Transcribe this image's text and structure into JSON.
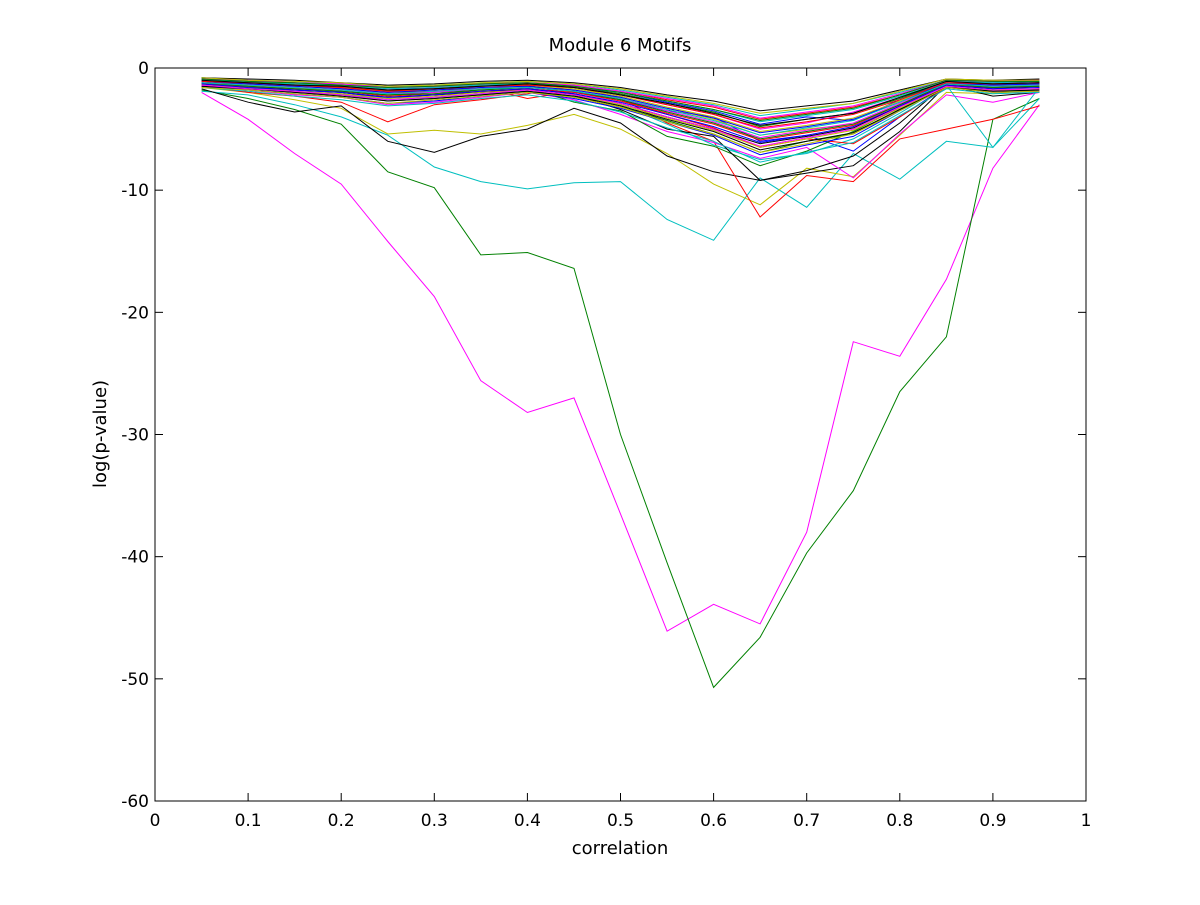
{
  "chart_data": {
    "type": "line",
    "title": "Module 6 Motifs",
    "xlabel": "correlation",
    "ylabel": "log(p-value)",
    "xlim": [
      0,
      1
    ],
    "ylim": [
      -60,
      0
    ],
    "grid": false,
    "legend": "none",
    "xticks": [
      0,
      0.1,
      0.2,
      0.3,
      0.4,
      0.5,
      0.6,
      0.7,
      0.8,
      0.9,
      1
    ],
    "xtick_labels": [
      "0",
      "0.1",
      "0.2",
      "0.3",
      "0.4",
      "0.5",
      "0.6",
      "0.7",
      "0.8",
      "0.9",
      "1"
    ],
    "yticks": [
      0,
      -10,
      -20,
      -30,
      -40,
      -50,
      -60
    ],
    "ytick_labels": [
      "0",
      "-10",
      "-20",
      "-30",
      "-40",
      "-50",
      "-60"
    ],
    "x": [
      0.05,
      0.1,
      0.15,
      0.2,
      0.25,
      0.3,
      0.35,
      0.4,
      0.45,
      0.5,
      0.55,
      0.6,
      0.65,
      0.7,
      0.75,
      0.8,
      0.85,
      0.9,
      0.95
    ],
    "series": [
      {
        "color": "#ff00ff",
        "values": [
          -2.0,
          -4.2,
          -7.0,
          -9.5,
          -14.2,
          -18.7,
          -25.6,
          -28.2,
          -27.0,
          -36.5,
          -46.1,
          -43.9,
          -45.5,
          -38.0,
          -22.4,
          -23.6,
          -17.3,
          -8.2,
          -3.0
        ]
      },
      {
        "color": "#008000",
        "values": [
          -1.8,
          -2.5,
          -3.4,
          -4.6,
          -8.5,
          -9.8,
          -15.3,
          -15.1,
          -16.4,
          -30.0,
          -40.5,
          -50.7,
          -46.6,
          -39.7,
          -34.6,
          -26.5,
          -22.0,
          -4.2,
          -2.5
        ]
      },
      {
        "color": "#00bfbf",
        "values": [
          -1.9,
          -2.2,
          -3.0,
          -4.0,
          -5.5,
          -8.1,
          -9.3,
          -9.9,
          -9.4,
          -9.3,
          -12.4,
          -14.1,
          -9.0,
          -11.4,
          -7.0,
          -9.1,
          -6.0,
          -6.5,
          -2.5
        ]
      },
      {
        "color": "#bfbf00",
        "values": [
          -1.6,
          -2.0,
          -2.6,
          -3.3,
          -5.4,
          -5.1,
          -5.4,
          -4.7,
          -3.8,
          -5.0,
          -7.0,
          -9.5,
          -11.2,
          -8.2,
          -8.9,
          -5.5,
          -2.0,
          -2.1,
          -1.8
        ]
      },
      {
        "color": "#000000",
        "values": [
          -1.7,
          -2.8,
          -3.6,
          -3.1,
          -6.0,
          -6.9,
          -5.6,
          -5.0,
          -3.3,
          -4.5,
          -7.2,
          -8.5,
          -9.2,
          -8.6,
          -8.0,
          -5.2,
          -1.4,
          -2.3,
          -2.0
        ]
      },
      {
        "color": "#ff0000",
        "values": [
          -1.5,
          -2.0,
          -2.3,
          -2.8,
          -4.4,
          -3.0,
          -2.6,
          -2.1,
          -1.5,
          -2.5,
          -4.5,
          -6.0,
          -12.2,
          -8.8,
          -9.3,
          -5.8,
          -5.0,
          -4.2,
          -3.1
        ]
      },
      {
        "color": "#0000ff",
        "values": [
          -1.2,
          -1.5,
          -1.8,
          -2.0,
          -2.5,
          -2.2,
          -2.0,
          -1.8,
          -2.0,
          -2.6,
          -3.5,
          -4.0,
          -6.0,
          -5.5,
          -6.8,
          -4.0,
          -1.5,
          -1.6,
          -1.4
        ]
      },
      {
        "color": "#ff00ff",
        "values": [
          -1.4,
          -1.8,
          -2.2,
          -2.4,
          -3.0,
          -2.8,
          -2.4,
          -2.0,
          -2.6,
          -3.8,
          -5.2,
          -6.1,
          -7.4,
          -6.5,
          -9.0,
          -5.4,
          -2.2,
          -2.8,
          -2.0
        ]
      },
      {
        "color": "#008000",
        "values": [
          -1.1,
          -1.4,
          -1.6,
          -1.9,
          -2.2,
          -2.0,
          -1.8,
          -1.6,
          -2.8,
          -3.5,
          -5.6,
          -6.4,
          -8.0,
          -6.8,
          -5.2,
          -3.2,
          -1.2,
          -1.5,
          -1.3
        ]
      },
      {
        "color": "#00bfbf",
        "values": [
          -1.3,
          -1.6,
          -1.9,
          -2.1,
          -2.6,
          -2.4,
          -2.1,
          -1.9,
          -2.3,
          -3.0,
          -4.6,
          -6.3,
          -7.5,
          -7.0,
          -5.8,
          -3.7,
          -1.4,
          -6.5,
          -1.6
        ]
      },
      {
        "color": "#000000",
        "values": [
          -1.0,
          -1.2,
          -1.4,
          -1.6,
          -1.9,
          -1.7,
          -1.5,
          -1.4,
          -2.2,
          -3.4,
          -5.0,
          -5.6,
          -9.2,
          -8.4,
          -7.2,
          -4.5,
          -1.3,
          -1.4,
          -1.2
        ]
      },
      {
        "color": "#bfbf00",
        "values": [
          -1.2,
          -1.5,
          -1.7,
          -1.8,
          -2.1,
          -1.9,
          -1.7,
          -1.5,
          -1.8,
          -2.4,
          -3.3,
          -4.2,
          -5.5,
          -5.0,
          -4.6,
          -3.0,
          -1.3,
          -1.5,
          -1.4
        ]
      },
      {
        "color": "#0000ff",
        "values": [
          -0.9,
          -1.1,
          -1.3,
          -1.5,
          -1.8,
          -1.6,
          -1.4,
          -1.3,
          -1.6,
          -2.0,
          -2.8,
          -3.5,
          -4.6,
          -4.0,
          -4.3,
          -2.6,
          -1.1,
          -1.2,
          -1.1
        ]
      },
      {
        "color": "#ff0000",
        "values": [
          -1.1,
          -1.3,
          -1.5,
          -1.7,
          -2.0,
          -1.9,
          -1.6,
          -2.5,
          -1.9,
          -2.6,
          -3.8,
          -4.9,
          -6.5,
          -5.8,
          -6.2,
          -4.0,
          -1.6,
          -1.8,
          -1.7
        ]
      },
      {
        "color": "#ff00ff",
        "values": [
          -1.0,
          -1.2,
          -1.4,
          -1.5,
          -1.7,
          -1.6,
          -1.4,
          -1.3,
          -1.5,
          -2.2,
          -3.0,
          -3.8,
          -5.0,
          -4.5,
          -3.6,
          -2.4,
          -1.2,
          -1.3,
          -1.2
        ]
      },
      {
        "color": "#008000",
        "values": [
          -1.4,
          -1.7,
          -2.0,
          -2.2,
          -2.7,
          -2.5,
          -2.2,
          -1.9,
          -2.4,
          -3.2,
          -4.3,
          -5.4,
          -6.9,
          -6.0,
          -5.4,
          -3.4,
          -1.5,
          -1.9,
          -1.8
        ]
      },
      {
        "color": "#00bfbf",
        "values": [
          -0.8,
          -1.0,
          -1.1,
          -1.3,
          -1.5,
          -1.4,
          -1.2,
          -1.1,
          -1.3,
          -1.8,
          -2.4,
          -3.0,
          -3.9,
          -3.4,
          -2.9,
          -2.0,
          -1.0,
          -1.1,
          -1.0
        ]
      },
      {
        "color": "#000000",
        "values": [
          -1.3,
          -1.6,
          -1.8,
          -2.0,
          -2.4,
          -2.2,
          -2.0,
          -1.7,
          -2.1,
          -2.9,
          -4.0,
          -5.0,
          -6.2,
          -5.6,
          -4.9,
          -3.1,
          -1.4,
          -1.7,
          -1.5
        ]
      },
      {
        "color": "#bfbf00",
        "values": [
          -1.1,
          -1.3,
          -1.5,
          -1.6,
          -1.9,
          -1.8,
          -1.5,
          -1.4,
          -1.7,
          -2.3,
          -3.2,
          -4.0,
          -5.2,
          -4.7,
          -4.1,
          -2.7,
          -1.2,
          -1.4,
          -1.3
        ]
      },
      {
        "color": "#0000ff",
        "values": [
          -1.5,
          -1.8,
          -2.1,
          -2.4,
          -2.9,
          -2.7,
          -2.3,
          -2.0,
          -2.5,
          -3.3,
          -4.4,
          -5.5,
          -7.1,
          -6.3,
          -5.6,
          -3.5,
          -1.6,
          -2.0,
          -1.9
        ]
      },
      {
        "color": "#ff0000",
        "values": [
          -0.9,
          -1.1,
          -1.2,
          -1.4,
          -1.6,
          -1.5,
          -1.3,
          -1.2,
          -1.4,
          -1.9,
          -2.6,
          -3.2,
          -4.2,
          -3.7,
          -3.2,
          -2.2,
          -1.0,
          -1.1,
          -1.0
        ]
      },
      {
        "color": "#ff00ff",
        "values": [
          -1.2,
          -1.4,
          -1.6,
          -1.8,
          -2.1,
          -2.0,
          -1.7,
          -1.6,
          -1.9,
          -2.5,
          -3.5,
          -4.4,
          -5.7,
          -5.1,
          -4.5,
          -2.9,
          -1.3,
          -1.5,
          -1.4
        ]
      },
      {
        "color": "#008000",
        "values": [
          -1.0,
          -1.2,
          -1.3,
          -1.5,
          -1.8,
          -1.7,
          -1.4,
          -1.3,
          -1.6,
          -2.1,
          -2.9,
          -3.6,
          -4.8,
          -4.2,
          -3.7,
          -2.5,
          -1.1,
          -1.3,
          -1.2
        ]
      },
      {
        "color": "#00bfbf",
        "values": [
          -1.6,
          -1.9,
          -2.3,
          -2.6,
          -3.1,
          -2.9,
          -2.5,
          -2.2,
          -2.7,
          -3.6,
          -4.9,
          -6.0,
          -7.7,
          -6.9,
          -6.1,
          -3.9,
          -1.7,
          -2.1,
          -2.0
        ]
      },
      {
        "color": "#000000",
        "values": [
          -0.8,
          -0.9,
          -1.0,
          -1.2,
          -1.4,
          -1.3,
          -1.1,
          -1.0,
          -1.2,
          -1.6,
          -2.2,
          -2.7,
          -3.5,
          -3.1,
          -2.7,
          -1.8,
          -0.9,
          -1.0,
          -0.9
        ]
      },
      {
        "color": "#bfbf00",
        "values": [
          -1.4,
          -1.6,
          -1.9,
          -2.1,
          -2.5,
          -2.3,
          -2.0,
          -1.8,
          -2.2,
          -3.0,
          -4.1,
          -5.1,
          -6.5,
          -5.8,
          -5.1,
          -3.3,
          -1.5,
          -1.8,
          -1.7
        ]
      },
      {
        "color": "#0000ff",
        "values": [
          -1.1,
          -1.3,
          -1.5,
          -1.7,
          -2.0,
          -1.8,
          -1.6,
          -1.5,
          -1.8,
          -2.4,
          -3.3,
          -4.1,
          -5.3,
          -4.8,
          -4.2,
          -2.8,
          -1.2,
          -1.4,
          -1.3
        ]
      },
      {
        "color": "#ff0000",
        "values": [
          -1.3,
          -1.5,
          -1.7,
          -1.9,
          -2.3,
          -2.1,
          -1.9,
          -1.7,
          -2.0,
          -2.7,
          -3.7,
          -4.6,
          -5.9,
          -5.3,
          -4.7,
          -3.0,
          -1.4,
          -1.6,
          -1.5
        ]
      },
      {
        "color": "#ff00ff",
        "values": [
          -0.9,
          -1.0,
          -1.2,
          -1.3,
          -1.6,
          -1.5,
          -1.3,
          -1.2,
          -1.4,
          -1.9,
          -2.5,
          -3.1,
          -4.1,
          -3.6,
          -3.1,
          -2.1,
          -1.0,
          -1.1,
          -1.0
        ]
      },
      {
        "color": "#008000",
        "values": [
          -1.2,
          -1.5,
          -1.7,
          -1.9,
          -2.2,
          -2.1,
          -1.8,
          -1.6,
          -1.9,
          -2.6,
          -3.6,
          -4.5,
          -5.8,
          -5.2,
          -4.6,
          -3.0,
          -1.3,
          -1.6,
          -1.5
        ]
      },
      {
        "color": "#00bfbf",
        "values": [
          -1.0,
          -1.1,
          -1.3,
          -1.4,
          -1.7,
          -1.6,
          -1.4,
          -1.3,
          -1.5,
          -2.0,
          -2.7,
          -3.4,
          -4.4,
          -3.9,
          -3.4,
          -2.3,
          -1.1,
          -1.2,
          -1.1
        ]
      },
      {
        "color": "#000000",
        "values": [
          -1.5,
          -1.7,
          -2.0,
          -2.3,
          -2.7,
          -2.5,
          -2.2,
          -1.9,
          -2.3,
          -3.1,
          -4.2,
          -5.2,
          -6.7,
          -6.0,
          -5.3,
          -3.4,
          -1.6,
          -1.9,
          -1.8
        ]
      },
      {
        "color": "#bfbf00",
        "values": [
          -0.8,
          -1.0,
          -1.1,
          -1.2,
          -1.5,
          -1.4,
          -1.2,
          -1.1,
          -1.3,
          -1.7,
          -2.3,
          -2.9,
          -3.7,
          -3.3,
          -2.9,
          -1.9,
          -0.9,
          -1.0,
          -1.0
        ]
      },
      {
        "color": "#0000ff",
        "values": [
          -1.3,
          -1.6,
          -1.8,
          -2.0,
          -2.4,
          -2.2,
          -1.9,
          -1.7,
          -2.1,
          -2.8,
          -3.8,
          -4.8,
          -6.1,
          -5.5,
          -4.8,
          -3.1,
          -1.4,
          -1.7,
          -1.6
        ]
      },
      {
        "color": "#ff0000",
        "values": [
          -1.1,
          -1.2,
          -1.4,
          -1.6,
          -1.9,
          -1.7,
          -1.5,
          -1.4,
          -1.6,
          -2.2,
          -3.0,
          -3.8,
          -4.9,
          -4.4,
          -3.8,
          -2.6,
          -1.2,
          -1.3,
          -1.2
        ]
      },
      {
        "color": "#ff00ff",
        "values": [
          -1.4,
          -1.7,
          -1.9,
          -2.2,
          -2.6,
          -2.4,
          -2.1,
          -1.8,
          -2.2,
          -2.9,
          -4.0,
          -5.0,
          -6.4,
          -5.7,
          -5.0,
          -3.2,
          -1.5,
          -1.8,
          -1.7
        ]
      },
      {
        "color": "#008000",
        "values": [
          -0.9,
          -1.1,
          -1.2,
          -1.4,
          -1.6,
          -1.5,
          -1.3,
          -1.2,
          -1.5,
          -2.0,
          -2.7,
          -3.4,
          -4.3,
          -3.8,
          -3.3,
          -2.2,
          -1.0,
          -1.1,
          -1.1
        ]
      },
      {
        "color": "#00bfbf",
        "values": [
          -1.2,
          -1.4,
          -1.6,
          -1.8,
          -2.1,
          -1.9,
          -1.7,
          -1.6,
          -1.9,
          -2.5,
          -3.4,
          -4.3,
          -5.5,
          -4.9,
          -4.3,
          -2.8,
          -1.3,
          -1.5,
          -1.4
        ]
      },
      {
        "color": "#000000",
        "values": [
          -1.0,
          -1.2,
          -1.4,
          -1.5,
          -1.8,
          -1.7,
          -1.5,
          -1.3,
          -1.6,
          -2.2,
          -2.9,
          -3.7,
          -4.7,
          -4.2,
          -3.7,
          -2.4,
          -1.1,
          -1.3,
          -1.2
        ]
      },
      {
        "color": "#bfbf00",
        "values": [
          -1.6,
          -1.8,
          -2.1,
          -2.4,
          -2.9,
          -2.6,
          -2.3,
          -2.0,
          -2.4,
          -3.2,
          -4.4,
          -5.4,
          -6.9,
          -6.2,
          -5.4,
          -3.5,
          -1.6,
          -2.0,
          -1.9
        ]
      }
    ]
  }
}
